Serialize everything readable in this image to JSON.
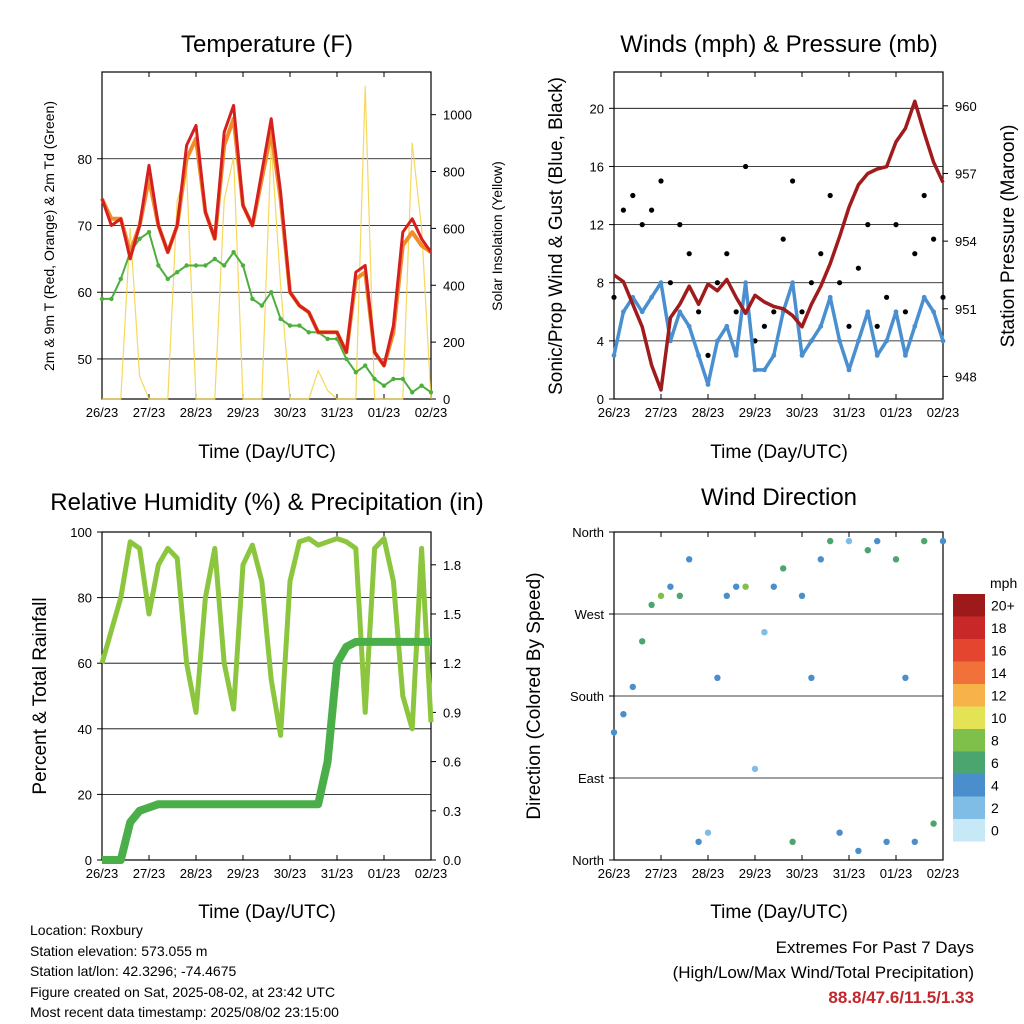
{
  "x_ticks": [
    "26/23",
    "27/23",
    "28/23",
    "29/23",
    "30/23",
    "31/23",
    "01/23",
    "02/23"
  ],
  "x_label": "Time (Day/UTC)",
  "panels": {
    "temperature": {
      "title": "Temperature (F)",
      "left_label": "2m & 9m T (Red, Orange) & 2m Td (Green)",
      "right_label": "Solar Insolation (Yellow)",
      "left_ticks": [
        "50",
        "60",
        "70",
        "80"
      ],
      "right_ticks": [
        "0",
        "200",
        "400",
        "600",
        "800",
        "1000"
      ]
    },
    "winds": {
      "title": "Winds (mph) & Pressure (mb)",
      "left_label": "Sonic/Prop Wind & Gust (Blue, Black)",
      "right_label": "Station Pressure (Maroon)",
      "left_ticks": [
        "0",
        "4",
        "8",
        "12",
        "16",
        "20"
      ],
      "right_ticks": [
        "948",
        "951",
        "954",
        "957",
        "960"
      ]
    },
    "humidity": {
      "title": "Relative Humidity (%) & Precipitation (in)",
      "left_label": "Percent & Total Rainfall",
      "left_ticks": [
        "0",
        "20",
        "40",
        "60",
        "80",
        "100"
      ],
      "right_ticks": [
        "0.0",
        "0.3",
        "0.6",
        "0.9",
        "1.2",
        "1.5",
        "1.8"
      ]
    },
    "direction": {
      "title": "Wind Direction",
      "left_label": "Direction (Colored By Speed)",
      "left_ticks": [
        "North",
        "East",
        "South",
        "West",
        "North"
      ],
      "legend_title": "mph",
      "legend_labels": [
        "0",
        "2",
        "4",
        "6",
        "8",
        "10",
        "12",
        "14",
        "16",
        "18",
        "20+"
      ],
      "legend_colors": [
        "#c6e8f7",
        "#7fbce6",
        "#4a8fcc",
        "#4aa66e",
        "#7fc04a",
        "#e3e355",
        "#f7b24a",
        "#f0723a",
        "#e3452e",
        "#c82828",
        "#9e1a1a"
      ]
    }
  },
  "chart_data": [
    {
      "type": "line",
      "title": "Temperature (F)",
      "xlabel": "Time (Day/UTC)",
      "ylabel": "2m & 9m T (Red, Orange) & 2m Td (Green)",
      "y2label": "Solar Insolation (Yellow)",
      "x": [
        26.0,
        26.2,
        26.4,
        26.6,
        26.8,
        27.0,
        27.2,
        27.4,
        27.6,
        27.8,
        28.0,
        28.2,
        28.4,
        28.6,
        28.8,
        29.0,
        29.2,
        29.4,
        29.6,
        29.8,
        30.0,
        30.2,
        30.4,
        30.6,
        30.8,
        31.0,
        31.2,
        31.4,
        31.6,
        31.8,
        32.0,
        32.2,
        32.4,
        32.6,
        32.8,
        33.0
      ],
      "ylim": [
        44,
        93
      ],
      "y2lim": [
        0,
        1150
      ],
      "series": [
        {
          "name": "2m T",
          "color": "#d62020",
          "values": [
            74,
            70,
            71,
            65,
            70,
            79,
            70,
            66,
            70,
            82,
            85,
            72,
            68,
            84,
            88,
            73,
            70,
            78,
            86,
            75,
            60,
            58,
            57,
            54,
            54,
            54,
            51,
            63,
            64,
            51,
            49,
            55,
            69,
            71,
            68,
            66
          ]
        },
        {
          "name": "9m T",
          "color": "#f08c2a",
          "values": [
            74,
            71,
            71,
            66,
            70,
            77,
            70,
            66,
            70,
            80,
            83,
            72,
            68,
            82,
            86,
            73,
            70,
            77,
            84,
            74,
            60,
            58,
            57,
            54,
            54,
            54,
            51,
            62,
            63,
            51,
            49,
            54,
            67,
            69,
            67,
            66
          ]
        },
        {
          "name": "2m Td",
          "color": "#4daf3c",
          "values": [
            59,
            59,
            62,
            66,
            68,
            69,
            64,
            62,
            63,
            64,
            64,
            64,
            65,
            64,
            66,
            64,
            59,
            58,
            60,
            56,
            55,
            55,
            54,
            54,
            53,
            53,
            50,
            48,
            49,
            47,
            46,
            47,
            47,
            45,
            46,
            45
          ]
        },
        {
          "name": "Solar Insolation",
          "color": "#f5d44a",
          "values": [
            0,
            0,
            0,
            600,
            80,
            0,
            0,
            0,
            700,
            800,
            0,
            0,
            0,
            700,
            850,
            0,
            0,
            0,
            900,
            400,
            0,
            0,
            0,
            100,
            30,
            0,
            0,
            0,
            1100,
            0,
            0,
            0,
            0,
            900,
            600,
            0
          ]
        }
      ]
    },
    {
      "type": "scatter",
      "title": "Winds (mph) & Pressure (mb)",
      "xlabel": "Time (Day/UTC)",
      "ylabel": "Sonic/Prop Wind & Gust (Blue, Black)",
      "y2label": "Station Pressure (Maroon)",
      "x": [
        26.0,
        26.2,
        26.4,
        26.6,
        26.8,
        27.0,
        27.2,
        27.4,
        27.6,
        27.8,
        28.0,
        28.2,
        28.4,
        28.6,
        28.8,
        29.0,
        29.2,
        29.4,
        29.6,
        29.8,
        30.0,
        30.2,
        30.4,
        30.6,
        30.8,
        31.0,
        31.2,
        31.4,
        31.6,
        31.8,
        32.0,
        32.2,
        32.4,
        32.6,
        32.8,
        33.0
      ],
      "ylim": [
        0,
        22.5
      ],
      "y2lim": [
        947,
        961.5
      ],
      "series": [
        {
          "name": "Gust",
          "color": "#000000",
          "values": [
            7,
            13,
            14,
            12,
            13,
            15,
            8,
            12,
            10,
            6,
            3,
            8,
            10,
            6,
            16,
            4,
            5,
            6,
            11,
            15,
            6,
            8,
            10,
            14,
            8,
            5,
            9,
            12,
            5,
            7,
            12,
            6,
            10,
            14,
            11,
            7
          ]
        },
        {
          "name": "Wind",
          "color": "#4a90d0",
          "values": [
            3,
            6,
            7,
            6,
            7,
            8,
            4,
            6,
            5,
            3,
            1,
            4,
            5,
            3,
            8,
            2,
            2,
            3,
            6,
            8,
            3,
            4,
            5,
            7,
            4,
            2,
            4,
            6,
            3,
            4,
            6,
            3,
            5,
            7,
            6,
            4
          ]
        },
        {
          "name": "Pressure",
          "color": "#a01c1c",
          "values": [
            952.5,
            952.2,
            951.2,
            950.2,
            948.5,
            947.4,
            950.6,
            951.2,
            952.0,
            951.2,
            952.1,
            951.8,
            952.3,
            951.5,
            950.8,
            951.6,
            951.3,
            951.1,
            951.0,
            950.7,
            950.2,
            951.2,
            952.0,
            953.0,
            954.2,
            955.5,
            956.5,
            957.0,
            957.2,
            957.3,
            958.4,
            959.0,
            960.2,
            958.8,
            957.5,
            956.6
          ]
        }
      ]
    },
    {
      "type": "line",
      "title": "Relative Humidity (%) & Precipitation (in)",
      "xlabel": "Time (Day/UTC)",
      "ylabel": "Percent & Total Rainfall",
      "x": [
        26.0,
        26.2,
        26.4,
        26.6,
        26.8,
        27.0,
        27.2,
        27.4,
        27.6,
        27.8,
        28.0,
        28.2,
        28.4,
        28.6,
        28.8,
        29.0,
        29.2,
        29.4,
        29.6,
        29.8,
        30.0,
        30.2,
        30.4,
        30.6,
        30.8,
        31.0,
        31.2,
        31.4,
        31.6,
        31.8,
        32.0,
        32.2,
        32.4,
        32.6,
        32.8,
        33.0
      ],
      "ylim": [
        0,
        100
      ],
      "y2lim": [
        0,
        2.0
      ],
      "series": [
        {
          "name": "Relative Humidity",
          "color": "#8cc63f",
          "values": [
            60,
            70,
            80,
            97,
            95,
            75,
            90,
            95,
            92,
            60,
            45,
            80,
            95,
            60,
            46,
            90,
            96,
            85,
            55,
            38,
            85,
            97,
            98,
            96,
            97,
            98,
            97,
            95,
            45,
            95,
            98,
            85,
            50,
            40,
            95,
            42
          ]
        },
        {
          "name": "Total Rainfall",
          "color": "#4aaf48",
          "values": [
            0.0,
            0.0,
            0.0,
            0.23,
            0.3,
            0.32,
            0.34,
            0.34,
            0.34,
            0.34,
            0.34,
            0.34,
            0.34,
            0.34,
            0.34,
            0.34,
            0.34,
            0.34,
            0.34,
            0.34,
            0.34,
            0.34,
            0.34,
            0.34,
            0.6,
            1.2,
            1.3,
            1.33,
            1.33,
            1.33,
            1.33,
            1.33,
            1.33,
            1.33,
            1.33,
            1.33
          ]
        }
      ]
    },
    {
      "type": "scatter",
      "title": "Wind Direction",
      "xlabel": "Time (Day/UTC)",
      "ylabel": "Direction (Colored By Speed)",
      "x": [
        26.0,
        26.2,
        26.4,
        26.6,
        26.8,
        27.0,
        27.2,
        27.4,
        27.6,
        27.8,
        28.0,
        28.2,
        28.4,
        28.6,
        28.8,
        29.0,
        29.2,
        29.4,
        29.6,
        29.8,
        30.0,
        30.2,
        30.4,
        30.6,
        30.8,
        31.0,
        31.2,
        31.4,
        31.6,
        31.8,
        32.0,
        32.2,
        32.4,
        32.6,
        32.8,
        33.0
      ],
      "ylim": [
        0,
        360
      ],
      "series": [
        {
          "name": "Direction",
          "values": [
            140,
            160,
            190,
            240,
            280,
            290,
            300,
            290,
            330,
            20,
            30,
            200,
            290,
            300,
            300,
            100,
            250,
            300,
            320,
            20,
            290,
            200,
            330,
            350,
            30,
            350,
            10,
            340,
            350,
            20,
            330,
            200,
            20,
            350,
            40,
            350
          ]
        },
        {
          "name": "Speed",
          "values": [
            3,
            4,
            4,
            5,
            6,
            7,
            4,
            5,
            4,
            3,
            2,
            3,
            4,
            3,
            7,
            2,
            2,
            3,
            5,
            6,
            3,
            3,
            4,
            6,
            3,
            2,
            3,
            5,
            3,
            4,
            6,
            3,
            4,
            6,
            5,
            4
          ]
        }
      ]
    }
  ],
  "station": {
    "location": "Location: Roxbury",
    "elevation": "Station elevation: 573.055 m",
    "latlon": "Station lat/lon: 42.3296; -74.4675",
    "created": "Figure created on Sat, 2025-08-02, at 23:42 UTC",
    "recent": "Most recent data timestamp: 2025/08/02 23:15:00"
  },
  "extremes": {
    "title": "Extremes For Past 7 Days",
    "subtitle": "(High/Low/Max Wind/Total Precipitation)",
    "values": "88.8/47.6/11.5/1.33"
  }
}
